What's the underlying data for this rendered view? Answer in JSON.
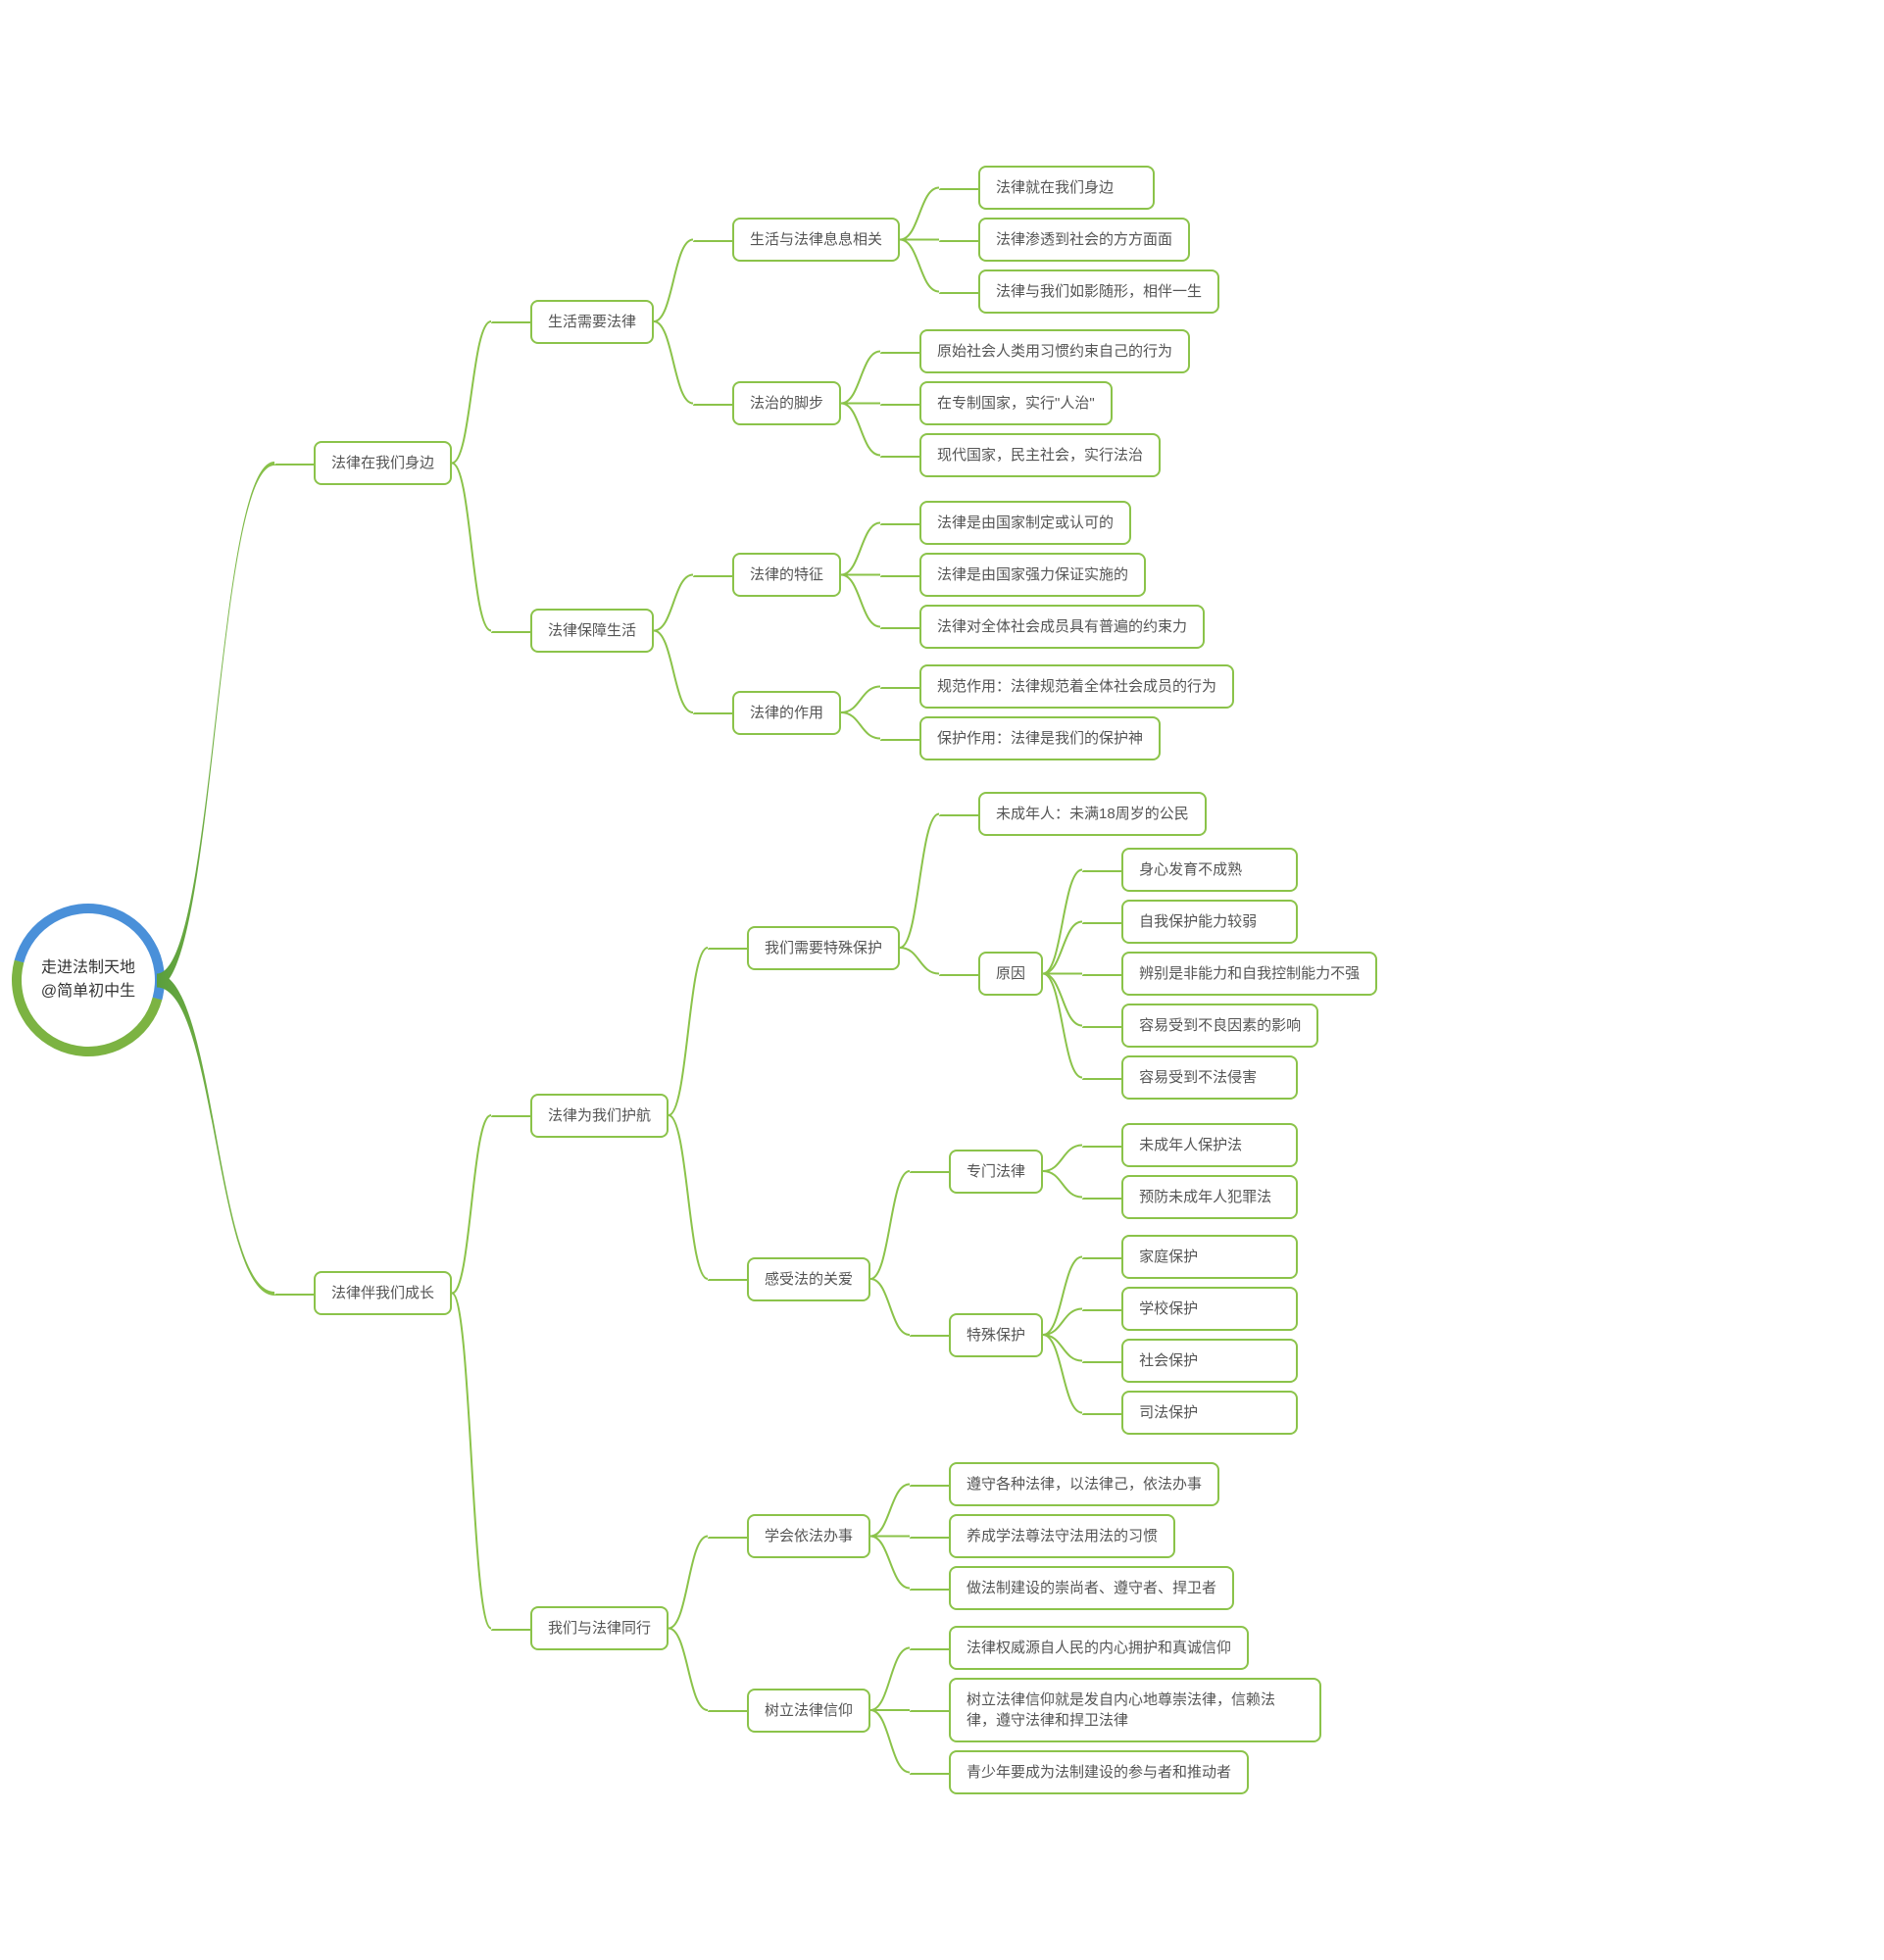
{
  "diagram": {
    "type": "mindmap",
    "layout": "right",
    "background_color": "#ffffff",
    "node_border_color": "#8bc34a",
    "node_border_width": 2,
    "node_border_radius": 8,
    "node_text_color": "#555555",
    "node_fontsize": 15,
    "connector_color": "#8bc34a",
    "connector_width": 2,
    "root_ring_colors": [
      "#4a90d9",
      "#7cb342"
    ],
    "trunk_gradient": [
      "#5a9e3d",
      "#8bc34a"
    ],
    "trunk_max_width": 14,
    "root": {
      "line1": "走进法制天地",
      "line2": "@简单初中生"
    },
    "tree": [
      {
        "label": "法律在我们身边",
        "children": [
          {
            "label": "生活需要法律",
            "children": [
              {
                "label": "生活与法律息息相关",
                "children": [
                  {
                    "label": "法律就在我们身边"
                  },
                  {
                    "label": "法律渗透到社会的方方面面"
                  },
                  {
                    "label": "法律与我们如影随形，相伴一生"
                  }
                ]
              },
              {
                "label": "法治的脚步",
                "children": [
                  {
                    "label": "原始社会人类用习惯约束自己的行为"
                  },
                  {
                    "label": "在专制国家，实行\"人治\""
                  },
                  {
                    "label": "现代国家，民主社会，实行法治"
                  }
                ]
              }
            ]
          },
          {
            "label": "法律保障生活",
            "children": [
              {
                "label": "法律的特征",
                "children": [
                  {
                    "label": "法律是由国家制定或认可的"
                  },
                  {
                    "label": "法律是由国家强力保证实施的"
                  },
                  {
                    "label": "法律对全体社会成员具有普遍的约束力"
                  }
                ]
              },
              {
                "label": "法律的作用",
                "children": [
                  {
                    "label": "规范作用：法律规范着全体社会成员的行为"
                  },
                  {
                    "label": "保护作用：法律是我们的保护神"
                  }
                ]
              }
            ]
          }
        ]
      },
      {
        "label": "法律伴我们成长",
        "children": [
          {
            "label": "法律为我们护航",
            "children": [
              {
                "label": "我们需要特殊保护",
                "children": [
                  {
                    "label": "未成年人：未满18周岁的公民"
                  },
                  {
                    "label": "原因",
                    "children": [
                      {
                        "label": "身心发育不成熟"
                      },
                      {
                        "label": "自我保护能力较弱"
                      },
                      {
                        "label": "辨别是非能力和自我控制能力不强"
                      },
                      {
                        "label": "容易受到不良因素的影响"
                      },
                      {
                        "label": "容易受到不法侵害"
                      }
                    ]
                  }
                ]
              },
              {
                "label": "感受法的关爱",
                "children": [
                  {
                    "label": "专门法律",
                    "children": [
                      {
                        "label": "未成年人保护法"
                      },
                      {
                        "label": "预防未成年人犯罪法"
                      }
                    ]
                  },
                  {
                    "label": "特殊保护",
                    "children": [
                      {
                        "label": "家庭保护"
                      },
                      {
                        "label": "学校保护"
                      },
                      {
                        "label": "社会保护"
                      },
                      {
                        "label": "司法保护"
                      }
                    ]
                  }
                ]
              }
            ]
          },
          {
            "label": "我们与法律同行",
            "children": [
              {
                "label": "学会依法办事",
                "children": [
                  {
                    "label": "遵守各种法律，以法律己，依法办事"
                  },
                  {
                    "label": "养成学法尊法守法用法的习惯"
                  },
                  {
                    "label": "做法制建设的崇尚者、遵守者、捍卫者"
                  }
                ]
              },
              {
                "label": "树立法律信仰",
                "children": [
                  {
                    "label": "法律权威源自人民的内心拥护和真诚信仰"
                  },
                  {
                    "label": "树立法律信仰就是发自内心地尊崇法律，信赖法律，遵守法律和捍卫法律"
                  },
                  {
                    "label": "青少年要成为法制建设的参与者和推动者"
                  }
                ]
              }
            ]
          }
        ]
      }
    ]
  }
}
